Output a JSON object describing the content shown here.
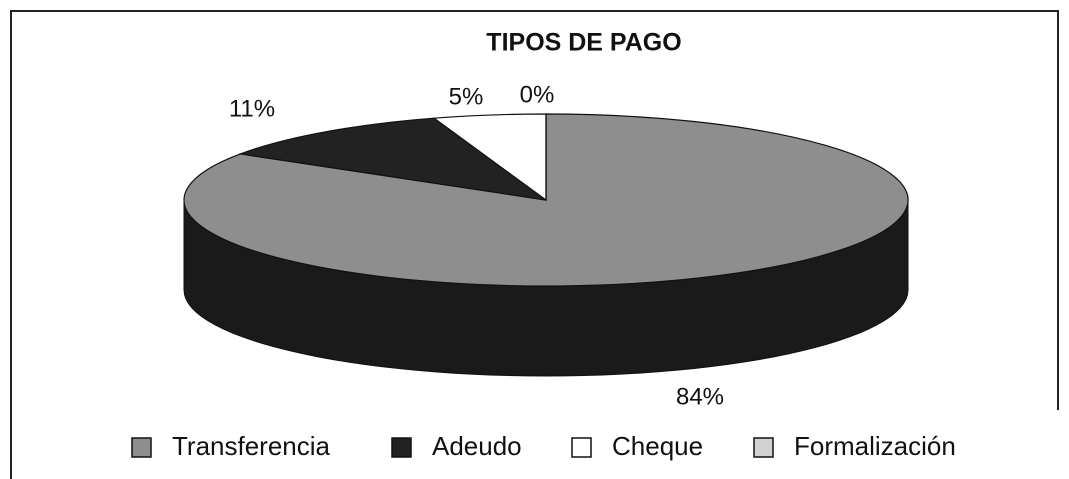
{
  "chart_data": {
    "type": "pie3d",
    "title": "TIPOS DE PAGO",
    "categories": [
      "Transferencia",
      "Adeudo",
      "Cheque",
      "Formalización"
    ],
    "values": [
      84,
      11,
      5,
      0
    ],
    "value_labels": [
      "84%",
      "11%",
      "5%",
      "0%"
    ],
    "colors": [
      "#8e8e8e",
      "#222222",
      "#ffffff",
      "#d2d2d2"
    ],
    "legend": "bottom"
  }
}
